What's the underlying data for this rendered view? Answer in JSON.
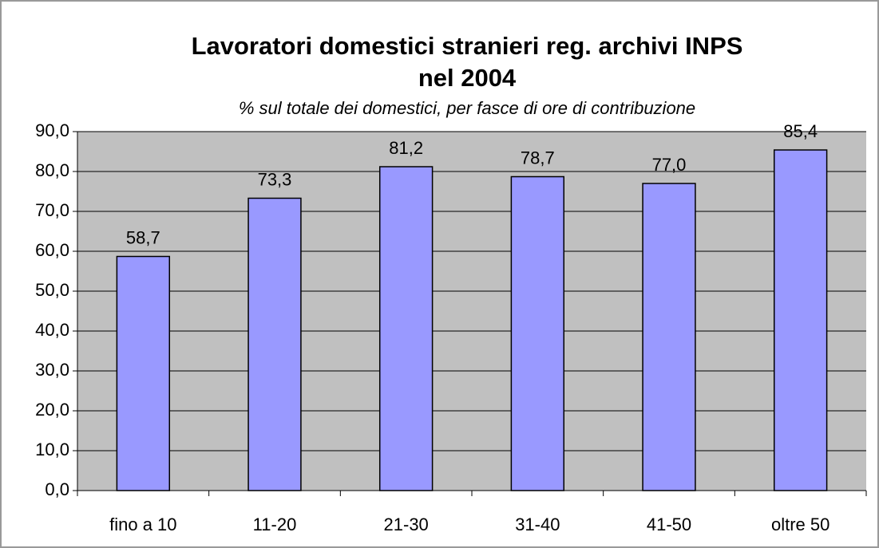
{
  "chart_data": {
    "type": "bar",
    "title": [
      "Lavoratori domestici stranieri reg. archivi INPS",
      "nel 2004"
    ],
    "subtitle": "% sul totale dei domestici, per fasce di ore di contribuzione",
    "categories": [
      "fino a 10",
      "11-20",
      "21-30",
      "31-40",
      "41-50",
      "oltre 50"
    ],
    "values": [
      58.7,
      73.3,
      81.2,
      78.7,
      77.0,
      85.4
    ],
    "value_labels": [
      "58,7",
      "73,3",
      "81,2",
      "78,7",
      "77,0",
      "85,4"
    ],
    "color": "#9999ff",
    "ylim": [
      0,
      90
    ],
    "yticks": [
      {
        "value": 0,
        "label": "0,0"
      },
      {
        "value": 10,
        "label": "10,0"
      },
      {
        "value": 20,
        "label": "20,0"
      },
      {
        "value": 30,
        "label": "30,0"
      },
      {
        "value": 40,
        "label": "40,0"
      },
      {
        "value": 50,
        "label": "50,0"
      },
      {
        "value": 60,
        "label": "60,0"
      },
      {
        "value": 70,
        "label": "70,0"
      },
      {
        "value": 80,
        "label": "80,0"
      },
      {
        "value": 90,
        "label": "90,0"
      }
    ],
    "grid": true
  }
}
